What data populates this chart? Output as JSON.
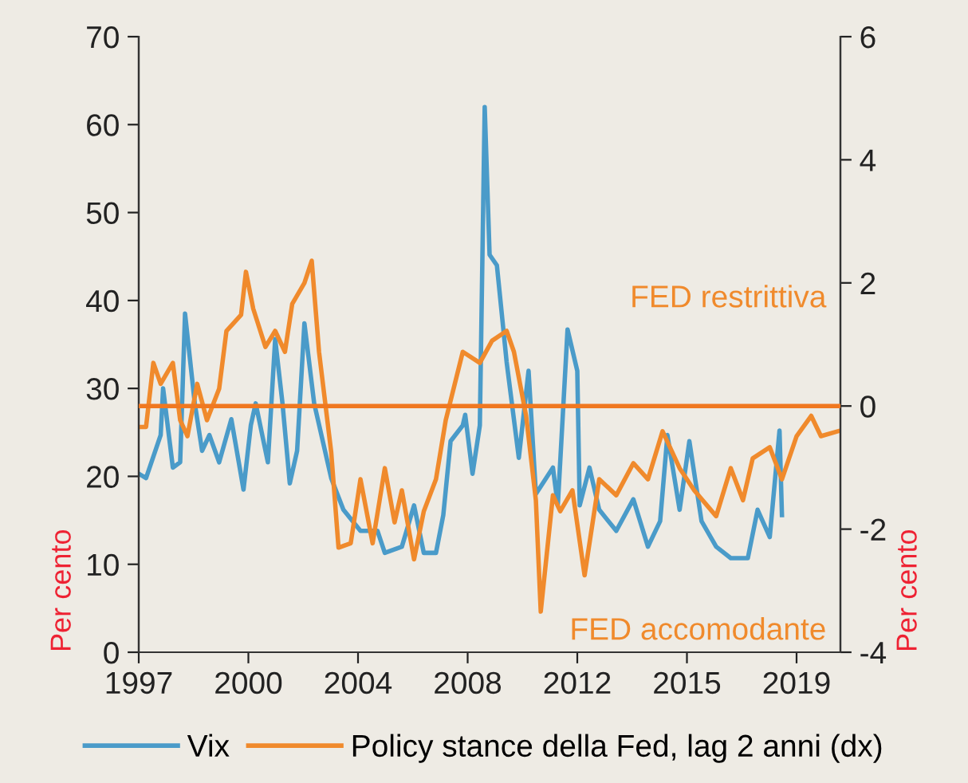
{
  "chart_data": {
    "type": "line",
    "ylabel": "Per cento",
    "y2label": "Per cento",
    "xlim": [
      "1997-01",
      "2021-01"
    ],
    "xticks": [
      {
        "value": "1997-01",
        "label": "1997"
      },
      {
        "value": "2000-10",
        "label": "2000"
      },
      {
        "value": "2004-07",
        "label": "2004"
      },
      {
        "value": "2008-04",
        "label": "2008"
      },
      {
        "value": "2012-01",
        "label": "2012"
      },
      {
        "value": "2015-10",
        "label": "2015"
      },
      {
        "value": "2019-07",
        "label": "2019"
      }
    ],
    "ylim": [
      0,
      70
    ],
    "yticks": [
      0,
      10,
      20,
      30,
      40,
      50,
      60,
      70
    ],
    "y2lim": [
      -4,
      6
    ],
    "y2ticks": [
      -4,
      -2,
      0,
      2,
      4,
      6
    ],
    "series": [
      {
        "name": "Vix",
        "color": "#4a9bc9",
        "x": [
          "1997-01",
          "1997-04",
          "1997-10",
          "1997-11",
          "1998-03",
          "1998-06",
          "1998-08",
          "1998-12",
          "1999-03",
          "1999-06",
          "1999-10",
          "2000-03",
          "2000-08",
          "2000-11",
          "2001-01",
          "2001-06",
          "2001-09",
          "2001-12",
          "2002-03",
          "2002-06",
          "2002-09",
          "2003-01",
          "2003-08",
          "2004-01",
          "2004-08",
          "2005-03",
          "2005-06",
          "2006-01",
          "2006-06",
          "2006-10",
          "2007-03",
          "2007-06",
          "2007-09",
          "2008-02",
          "2008-03",
          "2008-06",
          "2008-09",
          "2008-11",
          "2009-01",
          "2009-04",
          "2009-08",
          "2010-01",
          "2010-05",
          "2010-08",
          "2011-03",
          "2011-05",
          "2011-09",
          "2012-01",
          "2012-02",
          "2012-06",
          "2012-10",
          "2013-05",
          "2013-12",
          "2014-06",
          "2014-11",
          "2015-02",
          "2015-07",
          "2015-11",
          "2016-04",
          "2016-10",
          "2017-04",
          "2017-11",
          "2018-03",
          "2018-08",
          "2018-12",
          "2019-01"
        ],
        "values": [
          20.3,
          19.8,
          24.7,
          30,
          21,
          21.6,
          38.5,
          28.3,
          22.9,
          24.7,
          21.6,
          26.5,
          18.5,
          25.8,
          28.3,
          21.6,
          35.6,
          28.3,
          19.2,
          22.9,
          37.4,
          28.3,
          19.8,
          16.2,
          13.8,
          13.8,
          11.3,
          12,
          16.7,
          11.3,
          11.3,
          15.6,
          24,
          25.8,
          27,
          20.3,
          25.8,
          62,
          45.2,
          44,
          33,
          22.1,
          32,
          18,
          21,
          16.7,
          36.7,
          32,
          16.7,
          21,
          16.2,
          13.8,
          17.4,
          12,
          14.9,
          24.7,
          16.2,
          24,
          14.9,
          12,
          10.7,
          10.7,
          16.2,
          13.1,
          25.2,
          15.6
        ]
      },
      {
        "name": "Policy stance della Fed, lag 2 anni (dx)",
        "color": "#f08a2c",
        "axis": "y2",
        "x": [
          "1997-01",
          "1997-04",
          "1997-07",
          "1997-10",
          "1998-03",
          "1998-06",
          "1998-09",
          "1999-01",
          "1999-05",
          "1999-10",
          "2000-01",
          "2000-07",
          "2000-09",
          "2000-12",
          "2001-05",
          "2001-09",
          "2002-01",
          "2002-04",
          "2002-09",
          "2002-12",
          "2003-03",
          "2003-08",
          "2003-11",
          "2004-04",
          "2004-08",
          "2005-01",
          "2005-06",
          "2005-10",
          "2006-01",
          "2006-06",
          "2006-10",
          "2007-03",
          "2007-07",
          "2008-02",
          "2008-09",
          "2009-02",
          "2009-08",
          "2009-11",
          "2010-04",
          "2010-08",
          "2010-10",
          "2011-03",
          "2011-06",
          "2011-11",
          "2012-04",
          "2012-10",
          "2013-05",
          "2013-12",
          "2014-06",
          "2014-12",
          "2015-07",
          "2016-01",
          "2016-10",
          "2017-04",
          "2017-09",
          "2018-01",
          "2018-08",
          "2019-01",
          "2019-07",
          "2020-01",
          "2020-05",
          "2020-12"
        ],
        "values": [
          -0.34,
          -0.34,
          0.7,
          0.36,
          0.7,
          -0.23,
          -0.49,
          0.36,
          -0.23,
          0.28,
          1.22,
          1.48,
          2.18,
          1.58,
          0.96,
          1.22,
          0.88,
          1.66,
          2.0,
          2.36,
          0.88,
          -0.75,
          -2.3,
          -2.23,
          -1.19,
          -2.23,
          -1.01,
          -1.89,
          -1.37,
          -2.49,
          -1.71,
          -1.19,
          -0.23,
          0.88,
          0.7,
          1.06,
          1.22,
          0.88,
          -0.16,
          -1.53,
          -3.34,
          -1.45,
          -1.71,
          -1.37,
          -2.75,
          -1.19,
          -1.45,
          -0.93,
          -1.19,
          -0.41,
          -1.01,
          -1.37,
          -1.79,
          -1.01,
          -1.53,
          -0.85,
          -0.67,
          -1.19,
          -0.49,
          -0.16,
          -0.49,
          -0.41
        ]
      }
    ],
    "ref_lines": [
      {
        "axis": "y2",
        "value": 0,
        "color": "#f07820"
      }
    ],
    "annotations": [
      "FED restrittiva",
      "FED accomodante"
    ],
    "legend": "bottom",
    "grid": false,
    "marker": "none",
    "line_style": "solid"
  }
}
